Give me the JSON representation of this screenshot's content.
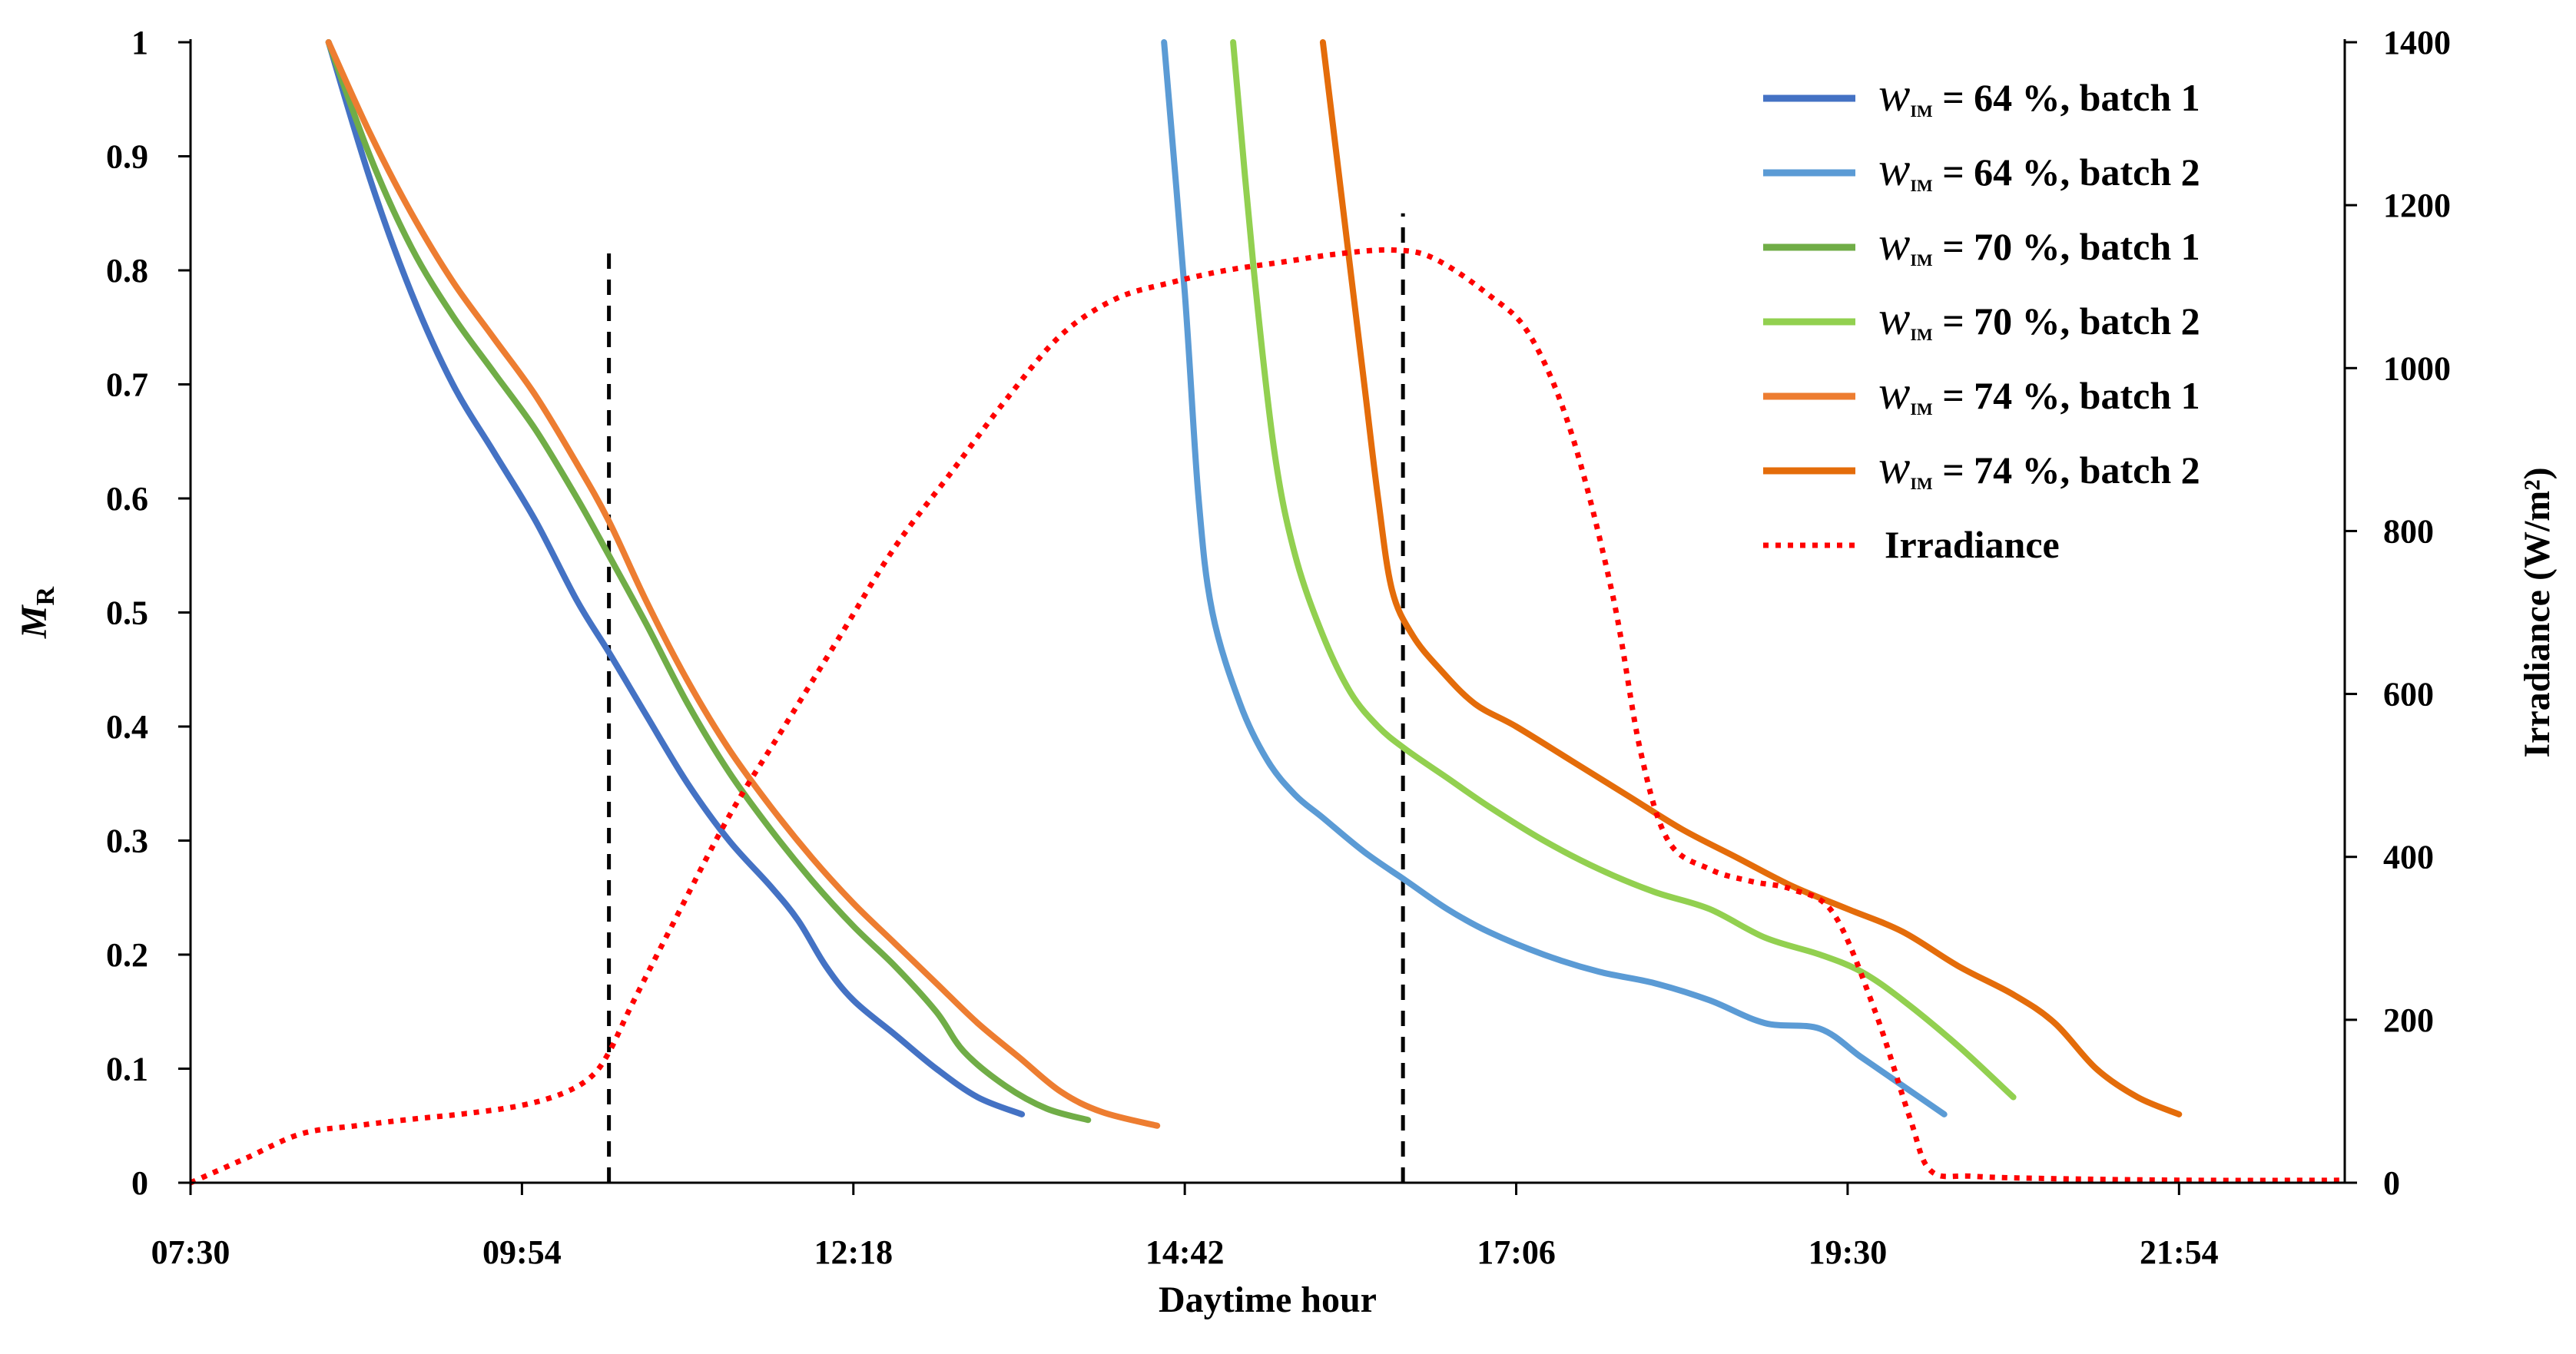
{
  "chart_data": {
    "type": "line",
    "xlabel": "Daytime hour",
    "ylabel": "M",
    "ylabel_sub": "R",
    "y2label": "Irradiance (W/m²)",
    "x_range_hours": [
      7.5,
      23.1
    ],
    "x_ticks": [
      {
        "label": "07:30",
        "hour": 7.5
      },
      {
        "label": "09:54",
        "hour": 9.9
      },
      {
        "label": "12:18",
        "hour": 12.3
      },
      {
        "label": "14:42",
        "hour": 14.7
      },
      {
        "label": "17:06",
        "hour": 17.1
      },
      {
        "label": "19:30",
        "hour": 19.5
      },
      {
        "label": "21:54",
        "hour": 21.9
      }
    ],
    "ylim": [
      0,
      1
    ],
    "y_ticks": [
      {
        "label": "0",
        "value": 0
      },
      {
        "label": "0.1",
        "value": 0.1
      },
      {
        "label": "0.2",
        "value": 0.2
      },
      {
        "label": "0.3",
        "value": 0.3
      },
      {
        "label": "0.4",
        "value": 0.4
      },
      {
        "label": "0.5",
        "value": 0.5
      },
      {
        "label": "0.6",
        "value": 0.6
      },
      {
        "label": "0.7",
        "value": 0.7
      },
      {
        "label": "0.8",
        "value": 0.8
      },
      {
        "label": "0.9",
        "value": 0.9
      },
      {
        "label": "1",
        "value": 1
      }
    ],
    "y2lim": [
      0,
      1400
    ],
    "y2_ticks": [
      {
        "label": "0",
        "value": 0
      },
      {
        "label": "200",
        "value": 200
      },
      {
        "label": "400",
        "value": 400
      },
      {
        "label": "600",
        "value": 600
      },
      {
        "label": "800",
        "value": 800
      },
      {
        "label": "1000",
        "value": 1000
      },
      {
        "label": "1200",
        "value": 1200
      },
      {
        "label": "1400",
        "value": 1400
      }
    ],
    "vertical_markers": [
      {
        "hour": 10.53,
        "value_top": 0.815
      },
      {
        "hour": 16.28,
        "value_top": 0.85
      }
    ],
    "series": [
      {
        "name": "w_IM = 64 %, batch 1",
        "legend_var": "w",
        "legend_sub": "IM",
        "legend_text": "= 64 %, batch 1",
        "color": "#4472C4",
        "axis": "left",
        "points": [
          [
            8.5,
            1.0
          ],
          [
            8.8,
            0.88
          ],
          [
            9.1,
            0.78
          ],
          [
            9.4,
            0.7
          ],
          [
            9.7,
            0.64
          ],
          [
            10.0,
            0.58
          ],
          [
            10.3,
            0.51
          ],
          [
            10.53,
            0.465
          ],
          [
            10.8,
            0.41
          ],
          [
            11.1,
            0.35
          ],
          [
            11.4,
            0.3
          ],
          [
            11.7,
            0.26
          ],
          [
            11.9,
            0.23
          ],
          [
            12.1,
            0.19
          ],
          [
            12.3,
            0.16
          ],
          [
            12.6,
            0.13
          ],
          [
            12.9,
            0.1
          ],
          [
            13.2,
            0.075
          ],
          [
            13.52,
            0.06
          ]
        ]
      },
      {
        "name": "w_IM = 64 %, batch 2",
        "legend_var": "w",
        "legend_sub": "IM",
        "legend_text": "= 64 %, batch 2",
        "color": "#5B9BD5",
        "axis": "left",
        "points": [
          [
            14.55,
            1.0
          ],
          [
            14.7,
            0.78
          ],
          [
            14.8,
            0.6
          ],
          [
            14.9,
            0.5
          ],
          [
            15.1,
            0.42
          ],
          [
            15.3,
            0.37
          ],
          [
            15.5,
            0.34
          ],
          [
            15.7,
            0.32
          ],
          [
            16.0,
            0.29
          ],
          [
            16.3,
            0.265
          ],
          [
            16.6,
            0.24
          ],
          [
            16.9,
            0.22
          ],
          [
            17.3,
            0.2
          ],
          [
            17.7,
            0.185
          ],
          [
            18.1,
            0.175
          ],
          [
            18.5,
            0.16
          ],
          [
            18.9,
            0.14
          ],
          [
            19.3,
            0.135
          ],
          [
            19.6,
            0.11
          ],
          [
            19.9,
            0.085
          ],
          [
            20.2,
            0.06
          ]
        ]
      },
      {
        "name": "w_IM = 70 %, batch 1",
        "legend_var": "w",
        "legend_sub": "IM",
        "legend_text": "= 70 %, batch 1",
        "color": "#70AD47",
        "axis": "left",
        "points": [
          [
            8.5,
            1.0
          ],
          [
            8.8,
            0.9
          ],
          [
            9.1,
            0.82
          ],
          [
            9.4,
            0.76
          ],
          [
            9.7,
            0.71
          ],
          [
            10.0,
            0.66
          ],
          [
            10.3,
            0.6
          ],
          [
            10.53,
            0.55
          ],
          [
            10.8,
            0.49
          ],
          [
            11.1,
            0.42
          ],
          [
            11.4,
            0.36
          ],
          [
            11.7,
            0.31
          ],
          [
            12.0,
            0.265
          ],
          [
            12.3,
            0.225
          ],
          [
            12.6,
            0.19
          ],
          [
            12.9,
            0.15
          ],
          [
            13.1,
            0.115
          ],
          [
            13.4,
            0.085
          ],
          [
            13.7,
            0.065
          ],
          [
            14.0,
            0.055
          ]
        ]
      },
      {
        "name": "w_IM = 70 %, batch 2",
        "legend_var": "w",
        "legend_sub": "IM",
        "legend_text": "= 70 %, batch 2",
        "color": "#92D050",
        "axis": "left",
        "points": [
          [
            15.05,
            1.0
          ],
          [
            15.2,
            0.8
          ],
          [
            15.35,
            0.64
          ],
          [
            15.5,
            0.55
          ],
          [
            15.7,
            0.48
          ],
          [
            15.9,
            0.43
          ],
          [
            16.1,
            0.4
          ],
          [
            16.3,
            0.38
          ],
          [
            16.6,
            0.355
          ],
          [
            16.9,
            0.33
          ],
          [
            17.3,
            0.3
          ],
          [
            17.7,
            0.275
          ],
          [
            18.1,
            0.255
          ],
          [
            18.5,
            0.24
          ],
          [
            18.9,
            0.215
          ],
          [
            19.3,
            0.2
          ],
          [
            19.6,
            0.185
          ],
          [
            19.9,
            0.16
          ],
          [
            20.3,
            0.12
          ],
          [
            20.7,
            0.075
          ]
        ]
      },
      {
        "name": "w_IM = 74 %, batch 1",
        "legend_var": "w",
        "legend_sub": "IM",
        "legend_text": "= 74 %, batch 1",
        "color": "#ED7D31",
        "axis": "left",
        "points": [
          [
            8.5,
            1.0
          ],
          [
            8.8,
            0.92
          ],
          [
            9.1,
            0.85
          ],
          [
            9.4,
            0.79
          ],
          [
            9.7,
            0.74
          ],
          [
            10.0,
            0.69
          ],
          [
            10.3,
            0.63
          ],
          [
            10.53,
            0.58
          ],
          [
            10.8,
            0.51
          ],
          [
            11.1,
            0.44
          ],
          [
            11.4,
            0.38
          ],
          [
            11.7,
            0.33
          ],
          [
            12.0,
            0.285
          ],
          [
            12.3,
            0.245
          ],
          [
            12.6,
            0.21
          ],
          [
            12.9,
            0.175
          ],
          [
            13.2,
            0.14
          ],
          [
            13.5,
            0.11
          ],
          [
            13.8,
            0.08
          ],
          [
            14.1,
            0.062
          ],
          [
            14.5,
            0.05
          ]
        ]
      },
      {
        "name": "w_IM = 74 %, batch 2",
        "legend_var": "w",
        "legend_sub": "IM",
        "legend_text": "= 74 %, batch 2",
        "color": "#E46C0A",
        "axis": "left",
        "points": [
          [
            15.7,
            1.0
          ],
          [
            15.85,
            0.85
          ],
          [
            16.0,
            0.7
          ],
          [
            16.1,
            0.6
          ],
          [
            16.2,
            0.52
          ],
          [
            16.35,
            0.48
          ],
          [
            16.55,
            0.45
          ],
          [
            16.8,
            0.42
          ],
          [
            17.1,
            0.4
          ],
          [
            17.5,
            0.37
          ],
          [
            17.9,
            0.34
          ],
          [
            18.3,
            0.31
          ],
          [
            18.7,
            0.285
          ],
          [
            19.1,
            0.26
          ],
          [
            19.5,
            0.24
          ],
          [
            19.9,
            0.22
          ],
          [
            20.3,
            0.19
          ],
          [
            20.7,
            0.165
          ],
          [
            21.0,
            0.14
          ],
          [
            21.3,
            0.1
          ],
          [
            21.6,
            0.075
          ],
          [
            21.9,
            0.06
          ]
        ]
      },
      {
        "name": "Irradiance",
        "legend_var": "",
        "legend_sub": "",
        "legend_text": "Irradiance",
        "color": "#FF0000",
        "dashed": true,
        "axis": "right",
        "points": [
          [
            7.5,
            0
          ],
          [
            7.9,
            30
          ],
          [
            8.3,
            60
          ],
          [
            8.7,
            70
          ],
          [
            9.1,
            78
          ],
          [
            9.5,
            85
          ],
          [
            9.9,
            95
          ],
          [
            10.2,
            110
          ],
          [
            10.4,
            130
          ],
          [
            10.53,
            160
          ],
          [
            10.7,
            220
          ],
          [
            11.0,
            320
          ],
          [
            11.4,
            450
          ],
          [
            11.8,
            560
          ],
          [
            12.2,
            670
          ],
          [
            12.6,
            780
          ],
          [
            13.0,
            870
          ],
          [
            13.4,
            960
          ],
          [
            13.8,
            1040
          ],
          [
            14.2,
            1085
          ],
          [
            14.6,
            1105
          ],
          [
            15.0,
            1120
          ],
          [
            15.4,
            1130
          ],
          [
            15.8,
            1140
          ],
          [
            16.2,
            1145
          ],
          [
            16.5,
            1135
          ],
          [
            16.9,
            1090
          ],
          [
            17.2,
            1040
          ],
          [
            17.5,
            920
          ],
          [
            17.8,
            720
          ],
          [
            18.0,
            530
          ],
          [
            18.2,
            420
          ],
          [
            18.5,
            385
          ],
          [
            18.8,
            370
          ],
          [
            19.1,
            360
          ],
          [
            19.4,
            330
          ],
          [
            19.7,
            210
          ],
          [
            19.95,
            80
          ],
          [
            20.1,
            15
          ],
          [
            20.4,
            8
          ],
          [
            21.0,
            5
          ],
          [
            22.0,
            3
          ],
          [
            23.1,
            3
          ]
        ]
      }
    ]
  }
}
